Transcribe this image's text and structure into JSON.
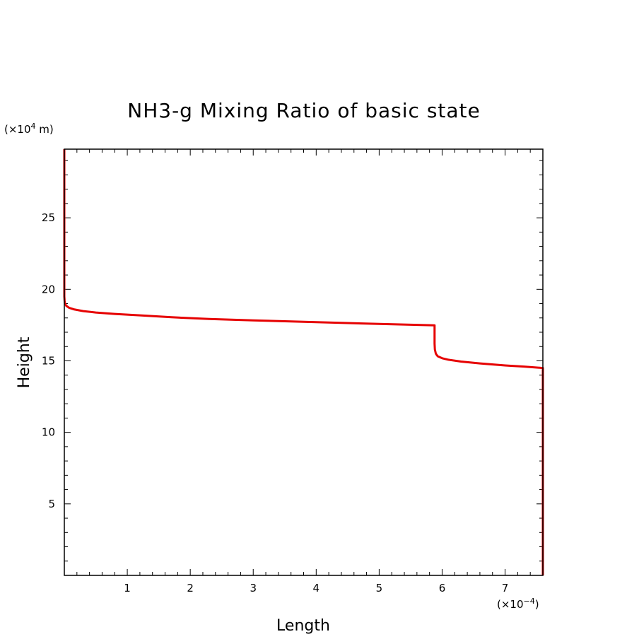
{
  "chart_data": {
    "type": "line",
    "title": "NH3-g Mixing Ratio of basic state",
    "xlabel": "Length",
    "ylabel": "Height",
    "x_multiplier": {
      "prefix": "(×10",
      "exponent": "−4",
      "suffix": ")"
    },
    "y_multiplier": {
      "prefix": "(×10",
      "exponent": "4",
      "suffix": " m)"
    },
    "xlim": [
      0,
      7.6
    ],
    "ylim": [
      0,
      29.8
    ],
    "x_ticks": [
      1,
      2,
      3,
      4,
      5,
      6,
      7
    ],
    "y_ticks": [
      5,
      10,
      15,
      20,
      25
    ],
    "grid": false,
    "series": [
      {
        "color": "#e60000",
        "x": [
          0.0,
          0.0,
          0.005,
          0.01,
          0.03,
          0.08,
          0.15,
          0.3,
          0.5,
          0.8,
          1.2,
          1.7,
          2.3,
          3.0,
          4.0,
          5.0,
          5.88,
          5.88,
          5.885,
          5.9,
          5.93,
          6.0,
          6.1,
          6.3,
          6.6,
          7.0,
          7.3,
          7.6,
          7.6
        ],
        "y": [
          29.8,
          19.5,
          19.2,
          19.0,
          18.85,
          18.7,
          18.6,
          18.48,
          18.38,
          18.28,
          18.18,
          18.05,
          17.93,
          17.83,
          17.7,
          17.58,
          17.48,
          16.2,
          15.8,
          15.5,
          15.32,
          15.18,
          15.08,
          14.95,
          14.82,
          14.68,
          14.6,
          14.5,
          0.0
        ]
      }
    ]
  }
}
